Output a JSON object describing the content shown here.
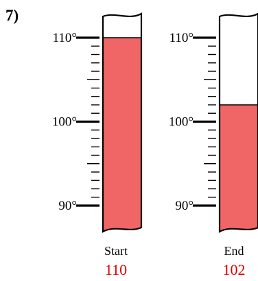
{
  "problem_label": "7)",
  "colors": {
    "mercury": "#f06565",
    "reading_text": "#e00000",
    "outline": "#000000"
  },
  "scale": {
    "min": 90,
    "max": 110,
    "major_step": 10,
    "minor_step": 1,
    "labels": [
      "110°",
      "100°",
      "90°"
    ]
  },
  "thermometers": [
    {
      "caption": "Start",
      "reading": "110",
      "value": 110
    },
    {
      "caption": "End",
      "reading": "102",
      "value": 102
    }
  ]
}
